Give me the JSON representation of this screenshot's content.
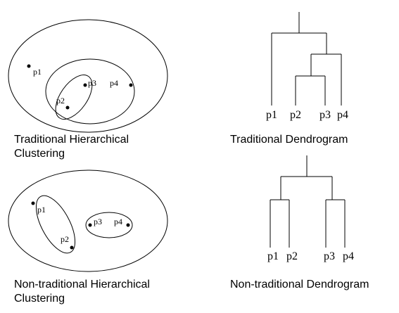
{
  "panels": {
    "traditional_clustering": {
      "caption": "Traditional Hierarchical\nClustering",
      "points": [
        "p1",
        "p2",
        "p3",
        "p4"
      ]
    },
    "traditional_dendrogram": {
      "caption": "Traditional Dendrogram",
      "leaves": [
        "p1",
        "p2",
        "p3",
        "p4"
      ]
    },
    "nontraditional_clustering": {
      "caption": "Non-traditional Hierarchical\nClustering",
      "points": [
        "p1",
        "p2",
        "p3",
        "p4"
      ]
    },
    "nontraditional_dendrogram": {
      "caption": "Non-traditional Dendrogram",
      "leaves": [
        "p1",
        "p2",
        "p3",
        "p4"
      ]
    }
  }
}
